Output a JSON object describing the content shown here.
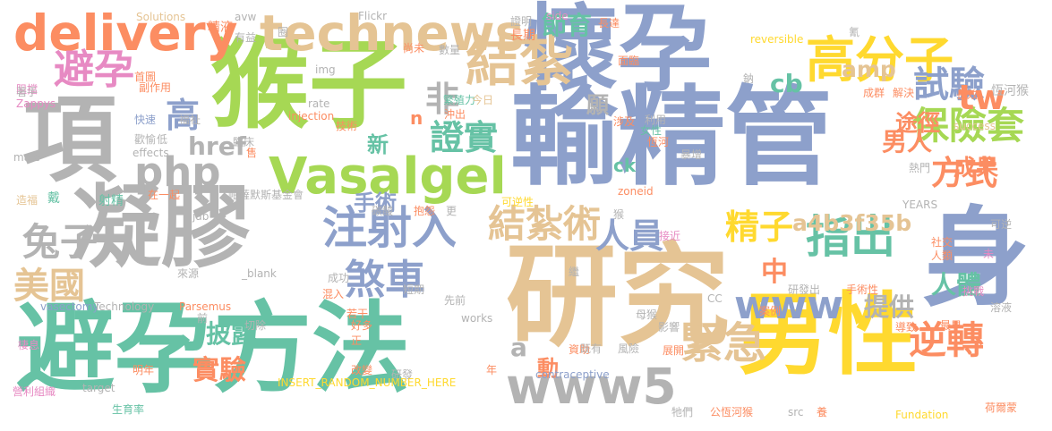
{
  "palette": {
    "teal": "#66c2a5",
    "orange": "#fc8d62",
    "blue": "#8da0cb",
    "pink": "#e78ac3",
    "green": "#a6d854",
    "yellow": "#ffd92f",
    "tan": "#e5c494",
    "gray": "#b3b3b3"
  },
  "words": [
    {
      "text": "輸精管",
      "color": "#8da0cb"
    },
    {
      "text": "研究",
      "color": "#e5c494"
    },
    {
      "text": "避孕方法",
      "color": "#66c2a5"
    },
    {
      "text": "猴子",
      "color": "#a6d854"
    },
    {
      "text": "懷孕",
      "color": "#8da0cb"
    },
    {
      "text": "凝膠",
      "color": "#b3b3b3"
    },
    {
      "text": "身",
      "color": "#8da0cb"
    },
    {
      "text": "男性",
      "color": "#ffd92f"
    },
    {
      "text": "項",
      "color": "#b3b3b3"
    },
    {
      "text": "Vasalgel",
      "color": "#a6d854"
    },
    {
      "text": "technews",
      "color": "#e5c494"
    },
    {
      "text": "delivery",
      "color": "#fc8d62"
    },
    {
      "text": "結紮",
      "color": "#e5c494"
    },
    {
      "text": "高分子",
      "color": "#ffd92f"
    },
    {
      "text": "避孕",
      "color": "#e78ac3"
    },
    {
      "text": "php",
      "color": "#b3b3b3"
    },
    {
      "text": "www5",
      "color": "#b3b3b3"
    },
    {
      "text": "www",
      "color": "#8da0cb"
    },
    {
      "text": "注射入",
      "color": "#8da0cb"
    },
    {
      "text": "結紮術",
      "color": "#e5c494"
    },
    {
      "text": "保險套",
      "color": "#a6d854"
    },
    {
      "text": "指出",
      "color": "#66c2a5"
    },
    {
      "text": "試驗",
      "color": "#8da0cb"
    },
    {
      "text": "緊急",
      "color": "#e5c494"
    },
    {
      "text": "煞車",
      "color": "#8da0cb"
    },
    {
      "text": "逆轉",
      "color": "#fc8d62"
    },
    {
      "text": "兔子",
      "color": "#b3b3b3"
    },
    {
      "text": "美國",
      "color": "#e5c494"
    },
    {
      "text": "高",
      "color": "#8da0cb"
    },
    {
      "text": "非",
      "color": "#b3b3b3"
    },
    {
      "text": "證實",
      "color": "#66c2a5"
    },
    {
      "text": "方式",
      "color": "#fc8d62"
    },
    {
      "text": "人員",
      "color": "#8da0cb"
    },
    {
      "text": "精子",
      "color": "#ffd92f"
    },
    {
      "text": "tw",
      "color": "#fc8d62"
    },
    {
      "text": "href",
      "color": "#b3b3b3"
    },
    {
      "text": "a4b3f35b",
      "color": "#e5c494"
    },
    {
      "text": "男人",
      "color": "#fc8d62"
    },
    {
      "text": "amp",
      "color": "#e5c494"
    },
    {
      "text": "節育",
      "color": "#66c2a5"
    },
    {
      "text": "cb",
      "color": "#66c2a5"
    },
    {
      "text": "願",
      "color": "#b3b3b3"
    },
    {
      "text": "途徑",
      "color": "#fc8d62"
    },
    {
      "text": "成果",
      "color": "#fc8d62"
    },
    {
      "text": "手術",
      "color": "#8da0cb"
    },
    {
      "text": "新",
      "color": "#66c2a5"
    },
    {
      "text": "n",
      "color": "#fc8d62"
    },
    {
      "text": "ck",
      "color": "#66c2a5"
    },
    {
      "text": "實驗",
      "color": "#fc8d62"
    },
    {
      "text": "披露",
      "color": "#66c2a5"
    },
    {
      "text": "提供",
      "color": "#b3b3b3"
    },
    {
      "text": "人體",
      "color": "#66c2a5"
    },
    {
      "text": "中",
      "color": "#fc8d62"
    },
    {
      "text": "a",
      "color": "#b3b3b3"
    },
    {
      "text": "動",
      "color": "#fc8d62"
    },
    {
      "text": "Solutions",
      "color": "#e5c494"
    },
    {
      "text": "avw",
      "color": "#b3b3b3"
    },
    {
      "text": "Flickr",
      "color": "#b3b3b3"
    },
    {
      "text": "精液",
      "color": "#fc8d62"
    },
    {
      "text": "有益",
      "color": "#b3b3b3"
    },
    {
      "text": "圈",
      "color": "#b3b3b3"
    },
    {
      "text": "證明",
      "color": "#b3b3b3"
    },
    {
      "text": "side",
      "color": "#e78ac3"
    },
    {
      "text": "長期",
      "color": "#fc8d62"
    },
    {
      "text": "長達",
      "color": "#fc8d62"
    },
    {
      "text": "氰",
      "color": "#b3b3b3"
    },
    {
      "text": "reversible",
      "color": "#ffd92f"
    },
    {
      "text": "阻擋",
      "color": "#e78ac3"
    },
    {
      "text": "首圖",
      "color": "#fc8d62"
    },
    {
      "text": "img",
      "color": "#b3b3b3"
    },
    {
      "text": "尚未",
      "color": "#fc8d62"
    },
    {
      "text": "數量",
      "color": "#b3b3b3"
    },
    {
      "text": "面臨",
      "color": "#fc8d62"
    },
    {
      "text": "副作用",
      "color": "#fc8d62"
    },
    {
      "text": "繁殖力",
      "color": "#66c2a5"
    },
    {
      "text": "今日",
      "color": "#e5c494"
    },
    {
      "text": "鈉",
      "color": "#b3b3b3"
    },
    {
      "text": "成群",
      "color": "#fc8d62"
    },
    {
      "text": "解決",
      "color": "#fc8d62"
    },
    {
      "text": "長效",
      "color": "#fc8d62"
    },
    {
      "text": "恆河猴",
      "color": "#b3b3b3"
    },
    {
      "text": "著手",
      "color": "#b3b3b3"
    },
    {
      "text": "rate",
      "color": "#b3b3b3"
    },
    {
      "text": "Zappys",
      "color": "#e78ac3"
    },
    {
      "text": "injection",
      "color": "#fc8d62"
    },
    {
      "text": "沖出",
      "color": "#fc8d62"
    },
    {
      "text": "技術",
      "color": "#fc8d62"
    },
    {
      "text": "涉及",
      "color": "#fc8d62"
    },
    {
      "text": "利用",
      "color": "#b3b3b3"
    },
    {
      "text": "快速",
      "color": "#8da0cb"
    },
    {
      "text": "福祉",
      "color": "#b3b3b3"
    },
    {
      "text": "女性",
      "color": "#66c2a5"
    },
    {
      "text": "success",
      "color": "#e5c494"
    },
    {
      "text": "歡愉",
      "color": "#b3b3b3"
    },
    {
      "text": "低",
      "color": "#b3b3b3"
    },
    {
      "text": "臨床",
      "color": "#b3b3b3"
    },
    {
      "text": "恆河",
      "color": "#fc8d62"
    },
    {
      "text": "effects",
      "color": "#b3b3b3"
    },
    {
      "text": "male",
      "color": "#b3b3b3"
    },
    {
      "text": "售",
      "color": "#fc8d62"
    },
    {
      "text": "暴增",
      "color": "#b3b3b3"
    },
    {
      "text": "熱門",
      "color": "#b3b3b3"
    },
    {
      "text": "造福",
      "color": "#e5c494"
    },
    {
      "text": "戴",
      "color": "#66c2a5"
    },
    {
      "text": "射精",
      "color": "#66c2a5"
    },
    {
      "text": "在一起",
      "color": "#fc8d62"
    },
    {
      "text": "帕薩默斯基金會",
      "color": "#b3b3b3"
    },
    {
      "text": "zoneid",
      "color": "#fc8d62"
    },
    {
      "text": "YEARS",
      "color": "#b3b3b3"
    },
    {
      "text": "jab",
      "color": "#b3b3b3"
    },
    {
      "text": "碳酸",
      "color": "#b3b3b3"
    },
    {
      "text": "抱怨",
      "color": "#fc8d62"
    },
    {
      "text": "更",
      "color": "#b3b3b3"
    },
    {
      "text": "可逆性",
      "color": "#ffd92f"
    },
    {
      "text": "猴",
      "color": "#b3b3b3"
    },
    {
      "text": "可逆",
      "color": "#b3b3b3"
    },
    {
      "text": "接近",
      "color": "#e78ac3"
    },
    {
      "text": "社交",
      "color": "#fc8d62"
    },
    {
      "text": "人類",
      "color": "#fc8d62"
    },
    {
      "text": "未",
      "color": "#e78ac3"
    },
    {
      "text": "來源",
      "color": "#b3b3b3"
    },
    {
      "text": "_blank",
      "color": "#b3b3b3"
    },
    {
      "text": "成功",
      "color": "#b3b3b3"
    },
    {
      "text": "繼",
      "color": "#b3b3b3"
    },
    {
      "text": "短期",
      "color": "#b3b3b3"
    },
    {
      "text": "研發出",
      "color": "#b3b3b3"
    },
    {
      "text": "手術性",
      "color": "#fc8d62"
    },
    {
      "text": "挑戰",
      "color": "#e78ac3"
    },
    {
      "text": "vasectomy",
      "color": "#8da0cb"
    },
    {
      "text": "Technology",
      "color": "#b3b3b3"
    },
    {
      "text": "Parsemus",
      "color": "#fc8d62"
    },
    {
      "text": "混入",
      "color": "#fc8d62"
    },
    {
      "text": "先前",
      "color": "#b3b3b3"
    },
    {
      "text": "CC",
      "color": "#b3b3b3"
    },
    {
      "text": "溶液",
      "color": "#b3b3b3"
    },
    {
      "text": "前",
      "color": "#b3b3b3"
    },
    {
      "text": "切除",
      "color": "#b3b3b3"
    },
    {
      "text": "若干",
      "color": "#fc8d62"
    },
    {
      "text": "好多",
      "color": "#fc8d62"
    },
    {
      "text": "works",
      "color": "#b3b3b3"
    },
    {
      "text": "母猴",
      "color": "#b3b3b3"
    },
    {
      "text": "案例",
      "color": "#fc8d62"
    },
    {
      "text": "最早",
      "color": "#fc8d62"
    },
    {
      "text": "棲息",
      "color": "#e78ac3"
    },
    {
      "text": "正",
      "color": "#fc8d62"
    },
    {
      "text": "資助",
      "color": "#fc8d62"
    },
    {
      "text": "影響",
      "color": "#b3b3b3"
    },
    {
      "text": "導致",
      "color": "#fc8d62"
    },
    {
      "text": "明年",
      "color": "#fc8d62"
    },
    {
      "text": "改變",
      "color": "#fc8d62"
    },
    {
      "text": "研發",
      "color": "#b3b3b3"
    },
    {
      "text": "年",
      "color": "#fc8d62"
    },
    {
      "text": "既有",
      "color": "#b3b3b3"
    },
    {
      "text": "風險",
      "color": "#b3b3b3"
    },
    {
      "text": "展開",
      "color": "#fc8d62"
    },
    {
      "text": "contraceptive",
      "color": "#8da0cb"
    },
    {
      "text": "營利組織",
      "color": "#e78ac3"
    },
    {
      "text": "target",
      "color": "#b3b3b3"
    },
    {
      "text": "生育率",
      "color": "#66c2a5"
    },
    {
      "text": "INSERT_RANDOM_NUMBER_HERE",
      "color": "#ffd92f"
    },
    {
      "text": "牠們",
      "color": "#b3b3b3"
    },
    {
      "text": "公恆河猴",
      "color": "#fc8d62"
    },
    {
      "text": "src",
      "color": "#b3b3b3"
    },
    {
      "text": "養",
      "color": "#fc8d62"
    },
    {
      "text": "Fundation",
      "color": "#ffd92f"
    },
    {
      "text": "荷爾蒙",
      "color": "#fc8d62"
    }
  ]
}
